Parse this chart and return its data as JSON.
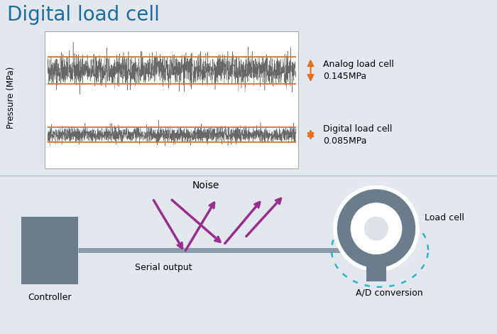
{
  "title": "Digital load cell",
  "title_color": "#1e6b9e",
  "title_fontsize": 20,
  "bg_color": "#e2e8ee",
  "bg_bottom": "#d8dee4",
  "plot_bg": "#ffffff",
  "orange_color": "#e87020",
  "analog_label_1": "Analog load cell",
  "analog_label_2": "0.145MPa",
  "digital_label_1": "Digital load cell",
  "digital_label_2": "0.085MPa",
  "ylabel": "Pressure (MPa)",
  "noise_label": "Noise",
  "serial_label": "Serial output",
  "controller_label": "Controller",
  "loadcell_label": "Load cell",
  "ad_label": "A/D conversion",
  "purple_color": "#9b2d8e",
  "gray_color": "#6b7c8d",
  "gray_dark": "#5a6b7a",
  "teal_color": "#2ab5c8",
  "line_color": "#8a9aaa",
  "divider_color": "#b8c4cc"
}
